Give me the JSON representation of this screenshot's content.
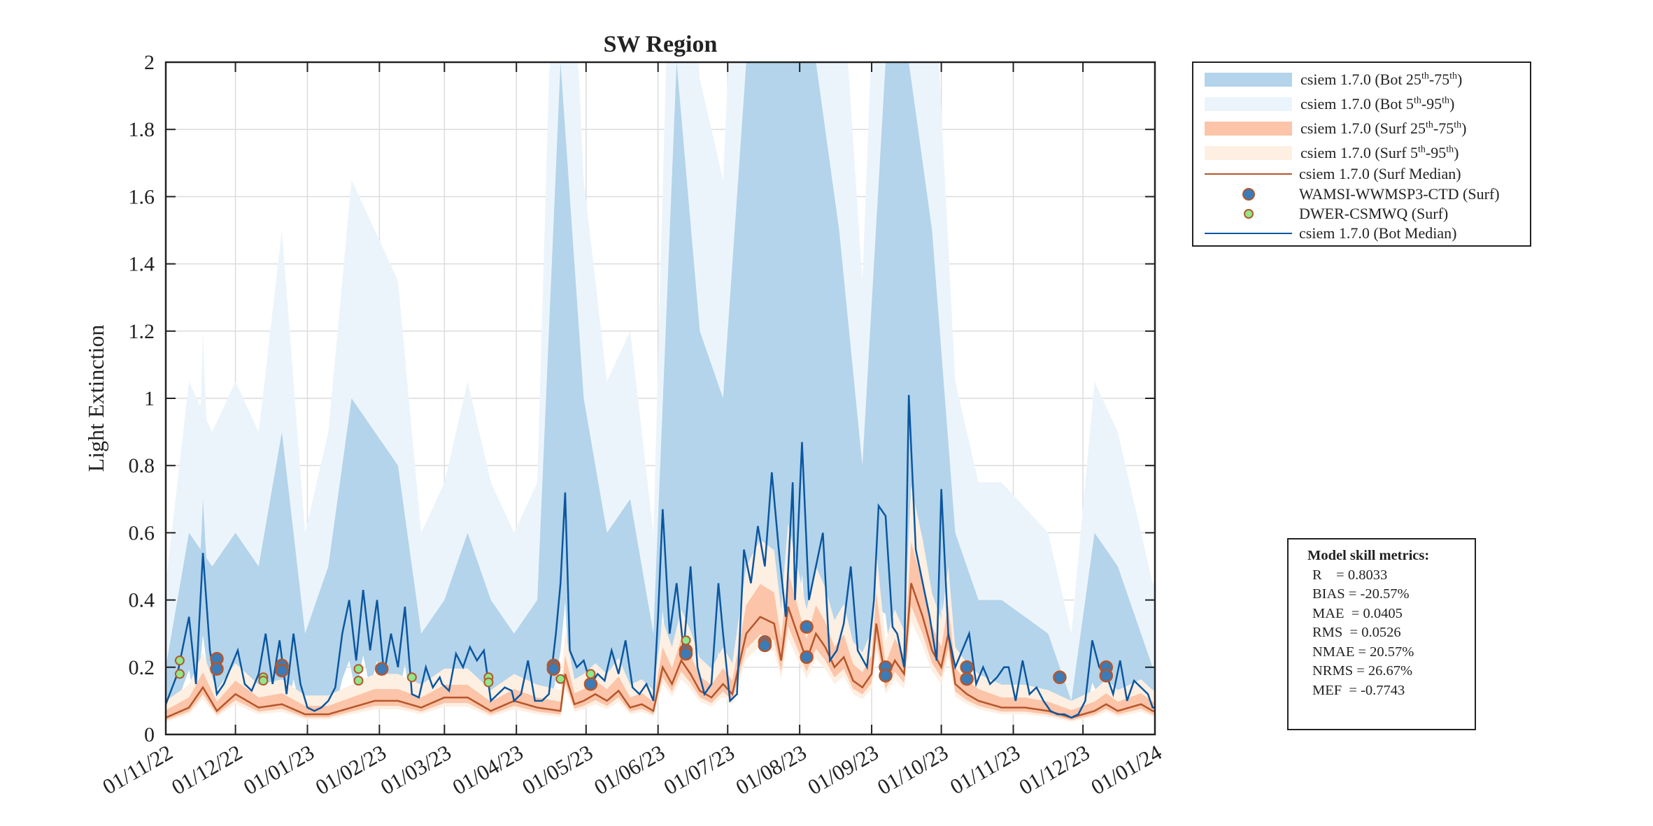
{
  "chart_data": {
    "type": "line",
    "title": "SW Region",
    "xlabel": "",
    "ylabel": "Light Extinction",
    "ylim": [
      0,
      2
    ],
    "yticks": [
      "0",
      "0.2",
      "0.4",
      "0.6",
      "0.8",
      "1",
      "1.2",
      "1.4",
      "1.6",
      "1.8",
      "2"
    ],
    "x_start": "2022-11-01",
    "x_days_total": 426,
    "xticks": [
      {
        "day": 0,
        "label": "01/11/22"
      },
      {
        "day": 30,
        "label": "01/12/22"
      },
      {
        "day": 61,
        "label": "01/01/23"
      },
      {
        "day": 92,
        "label": "01/02/23"
      },
      {
        "day": 120,
        "label": "01/03/23"
      },
      {
        "day": 151,
        "label": "01/04/23"
      },
      {
        "day": 181,
        "label": "01/05/23"
      },
      {
        "day": 212,
        "label": "01/06/23"
      },
      {
        "day": 242,
        "label": "01/07/23"
      },
      {
        "day": 273,
        "label": "01/08/23"
      },
      {
        "day": 304,
        "label": "01/09/23"
      },
      {
        "day": 334,
        "label": "01/10/23"
      },
      {
        "day": 365,
        "label": "01/11/23"
      },
      {
        "day": 395,
        "label": "01/12/23"
      },
      {
        "day": 426,
        "label": "01/01/24"
      }
    ],
    "grid": true,
    "legend_placement": "outside-top-right",
    "colors": {
      "bot_iqr": "#b3d4ea",
      "bot_90": "#ecf4fb",
      "surf_iqr": "#fcc4a8",
      "surf_90": "#fdefe2",
      "surf_median": "#b5562a",
      "bot_median": "#0b56a0",
      "wamsi_fill": "#3a7bb8",
      "dwer_fill": "#8fe88a",
      "marker_edge": "#b5562a"
    },
    "series": {
      "bot_median": {
        "name": "csiem 1.7.0 (Bot Median)",
        "days": [
          0,
          5,
          10,
          13,
          16,
          19,
          22,
          25,
          28,
          31,
          34,
          37,
          40,
          43,
          46,
          49,
          52,
          55,
          58,
          61,
          64,
          67,
          70,
          73,
          76,
          79,
          82,
          85,
          88,
          91,
          94,
          97,
          100,
          103,
          106,
          109,
          112,
          115,
          118,
          119,
          122,
          125,
          128,
          131,
          134,
          137,
          140,
          143,
          146,
          149,
          150,
          153,
          156,
          159,
          162,
          165,
          168,
          170,
          172,
          174,
          177,
          180,
          183,
          186,
          189,
          192,
          195,
          198,
          201,
          204,
          207,
          210,
          212,
          214,
          217,
          220,
          223,
          226,
          229,
          232,
          235,
          238,
          240,
          243,
          246,
          249,
          252,
          255,
          258,
          261,
          264,
          267,
          270,
          271,
          274,
          277,
          280,
          283,
          286,
          289,
          292,
          295,
          298,
          302,
          305,
          307,
          310,
          313,
          315,
          318,
          320,
          323,
          326,
          329,
          332,
          334,
          337,
          340,
          343,
          346,
          349,
          352,
          355,
          358,
          361,
          363,
          366,
          369,
          372,
          375,
          378,
          381,
          384,
          387,
          390,
          393,
          396,
          399,
          402,
          405,
          408,
          411,
          414,
          417,
          420,
          423,
          425
        ],
        "values": [
          0.09,
          0.18,
          0.35,
          0.15,
          0.54,
          0.25,
          0.12,
          0.15,
          0.2,
          0.25,
          0.15,
          0.13,
          0.18,
          0.3,
          0.15,
          0.28,
          0.12,
          0.3,
          0.15,
          0.08,
          0.07,
          0.08,
          0.1,
          0.14,
          0.3,
          0.4,
          0.22,
          0.43,
          0.25,
          0.4,
          0.18,
          0.3,
          0.2,
          0.38,
          0.12,
          0.11,
          0.2,
          0.14,
          0.17,
          0.15,
          0.13,
          0.24,
          0.2,
          0.26,
          0.22,
          0.25,
          0.1,
          0.12,
          0.14,
          0.13,
          0.1,
          0.12,
          0.22,
          0.1,
          0.1,
          0.12,
          0.3,
          0.45,
          0.72,
          0.25,
          0.2,
          0.22,
          0.15,
          0.18,
          0.16,
          0.25,
          0.18,
          0.28,
          0.14,
          0.12,
          0.15,
          0.1,
          0.35,
          0.67,
          0.3,
          0.45,
          0.25,
          0.5,
          0.2,
          0.12,
          0.15,
          0.45,
          0.3,
          0.1,
          0.12,
          0.55,
          0.45,
          0.62,
          0.5,
          0.78,
          0.55,
          0.35,
          0.75,
          0.4,
          0.87,
          0.4,
          0.5,
          0.6,
          0.22,
          0.25,
          0.33,
          0.5,
          0.25,
          0.2,
          0.4,
          0.68,
          0.65,
          0.32,
          0.3,
          0.2,
          1.01,
          0.55,
          0.45,
          0.35,
          0.22,
          0.73,
          0.3,
          0.2,
          0.25,
          0.3,
          0.15,
          0.2,
          0.15,
          0.17,
          0.2,
          0.2,
          0.1,
          0.22,
          0.12,
          0.14,
          0.1,
          0.07,
          0.06,
          0.06,
          0.05,
          0.06,
          0.1,
          0.28,
          0.2,
          0.18,
          0.12,
          0.22,
          0.1,
          0.16,
          0.14,
          0.12,
          0.08
        ]
      },
      "surf_median": {
        "name": "csiem 1.7.0 (Surf Median)",
        "days": [
          0,
          10,
          16,
          22,
          30,
          40,
          50,
          60,
          70,
          80,
          90,
          100,
          110,
          120,
          130,
          140,
          150,
          160,
          170,
          172,
          176,
          180,
          185,
          190,
          195,
          200,
          205,
          210,
          214,
          218,
          222,
          226,
          230,
          235,
          240,
          244,
          250,
          256,
          262,
          265,
          268,
          272,
          276,
          280,
          284,
          288,
          292,
          296,
          300,
          304,
          306,
          310,
          314,
          318,
          321,
          326,
          330,
          334,
          337,
          340,
          345,
          350,
          355,
          360,
          370,
          380,
          390,
          395,
          400,
          405,
          410,
          415,
          420,
          425
        ],
        "values": [
          0.05,
          0.08,
          0.14,
          0.07,
          0.12,
          0.08,
          0.09,
          0.06,
          0.06,
          0.08,
          0.1,
          0.1,
          0.08,
          0.11,
          0.11,
          0.07,
          0.1,
          0.08,
          0.07,
          0.18,
          0.09,
          0.1,
          0.12,
          0.1,
          0.13,
          0.08,
          0.09,
          0.07,
          0.2,
          0.15,
          0.22,
          0.18,
          0.13,
          0.11,
          0.15,
          0.12,
          0.3,
          0.35,
          0.33,
          0.22,
          0.38,
          0.3,
          0.22,
          0.3,
          0.26,
          0.2,
          0.23,
          0.16,
          0.14,
          0.18,
          0.33,
          0.16,
          0.22,
          0.18,
          0.45,
          0.35,
          0.25,
          0.2,
          0.3,
          0.15,
          0.12,
          0.1,
          0.09,
          0.08,
          0.08,
          0.07,
          0.05,
          0.06,
          0.07,
          0.09,
          0.07,
          0.08,
          0.09,
          0.07
        ]
      },
      "bot_p75": {
        "name": "csiem 1.7.0 (Bot 25th-75th)",
        "days": [
          0,
          10,
          20,
          30,
          40,
          50,
          60,
          70,
          80,
          90,
          100,
          110,
          120,
          130,
          140,
          150,
          160,
          170,
          180,
          190,
          200,
          210,
          220,
          230,
          240,
          250,
          260,
          270,
          280,
          290,
          300,
          310,
          320,
          330,
          340,
          350,
          360,
          370,
          380,
          390,
          400,
          410,
          420,
          425
        ],
        "values": [
          0.2,
          0.6,
          0.5,
          0.6,
          0.5,
          0.9,
          0.3,
          0.5,
          1.0,
          0.9,
          0.8,
          0.3,
          0.4,
          0.6,
          0.4,
          0.3,
          0.4,
          2.0,
          1.0,
          0.6,
          0.7,
          0.3,
          2.0,
          1.2,
          1.0,
          2.0,
          2.0,
          2.0,
          2.0,
          1.5,
          0.8,
          2.0,
          2.0,
          1.5,
          0.6,
          0.4,
          0.4,
          0.35,
          0.3,
          0.1,
          0.6,
          0.5,
          0.3,
          0.2
        ]
      }
    },
    "observations": [
      {
        "name": "WAMSI-WWMSP3-CTD (Surf)",
        "points": [
          [
            22,
            0.225
          ],
          [
            22,
            0.195
          ],
          [
            50,
            0.205
          ],
          [
            50,
            0.19
          ],
          [
            93,
            0.195
          ],
          [
            167,
            0.205
          ],
          [
            167,
            0.195
          ],
          [
            183,
            0.15
          ],
          [
            224,
            0.25
          ],
          [
            224,
            0.24
          ],
          [
            258,
            0.275
          ],
          [
            258,
            0.265
          ],
          [
            276,
            0.32
          ],
          [
            276,
            0.23
          ],
          [
            310,
            0.2
          ],
          [
            310,
            0.175
          ],
          [
            345,
            0.2
          ],
          [
            345,
            0.165
          ],
          [
            385,
            0.17
          ],
          [
            405,
            0.2
          ],
          [
            405,
            0.175
          ]
        ]
      },
      {
        "name": "DWER-CSMWQ (Surf)",
        "points": [
          [
            6,
            0.22
          ],
          [
            6,
            0.18
          ],
          [
            42,
            0.17
          ],
          [
            42,
            0.16
          ],
          [
            83,
            0.195
          ],
          [
            83,
            0.16
          ],
          [
            106,
            0.17
          ],
          [
            139,
            0.17
          ],
          [
            139,
            0.155
          ],
          [
            170,
            0.165
          ],
          [
            183,
            0.18
          ],
          [
            224,
            0.28
          ]
        ]
      }
    ]
  },
  "legend": {
    "items": [
      {
        "label": "csiem 1.7.0 (Bot 25th-75th)"
      },
      {
        "label": "csiem 1.7.0 (Bot 5th-95th)"
      },
      {
        "label": "csiem 1.7.0 (Surf 25th-75th)"
      },
      {
        "label": "csiem 1.7.0 (Surf 5th-95th)"
      },
      {
        "label": "csiem 1.7.0 (Surf Median)"
      },
      {
        "label": "WAMSI-WWMSP3-CTD (Surf)"
      },
      {
        "label": "DWER-CSMWQ (Surf)"
      },
      {
        "label": "csiem 1.7.0 (Bot Median)"
      }
    ]
  },
  "metrics": {
    "title": "Model skill metrics:",
    "rows": [
      "R    = 0.8033",
      "BIAS = -20.57%",
      "MAE  = 0.0405",
      "RMS  = 0.0526",
      "NMAE = 20.57%",
      "NRMS = 26.67%",
      "MEF  = -0.7743"
    ]
  }
}
